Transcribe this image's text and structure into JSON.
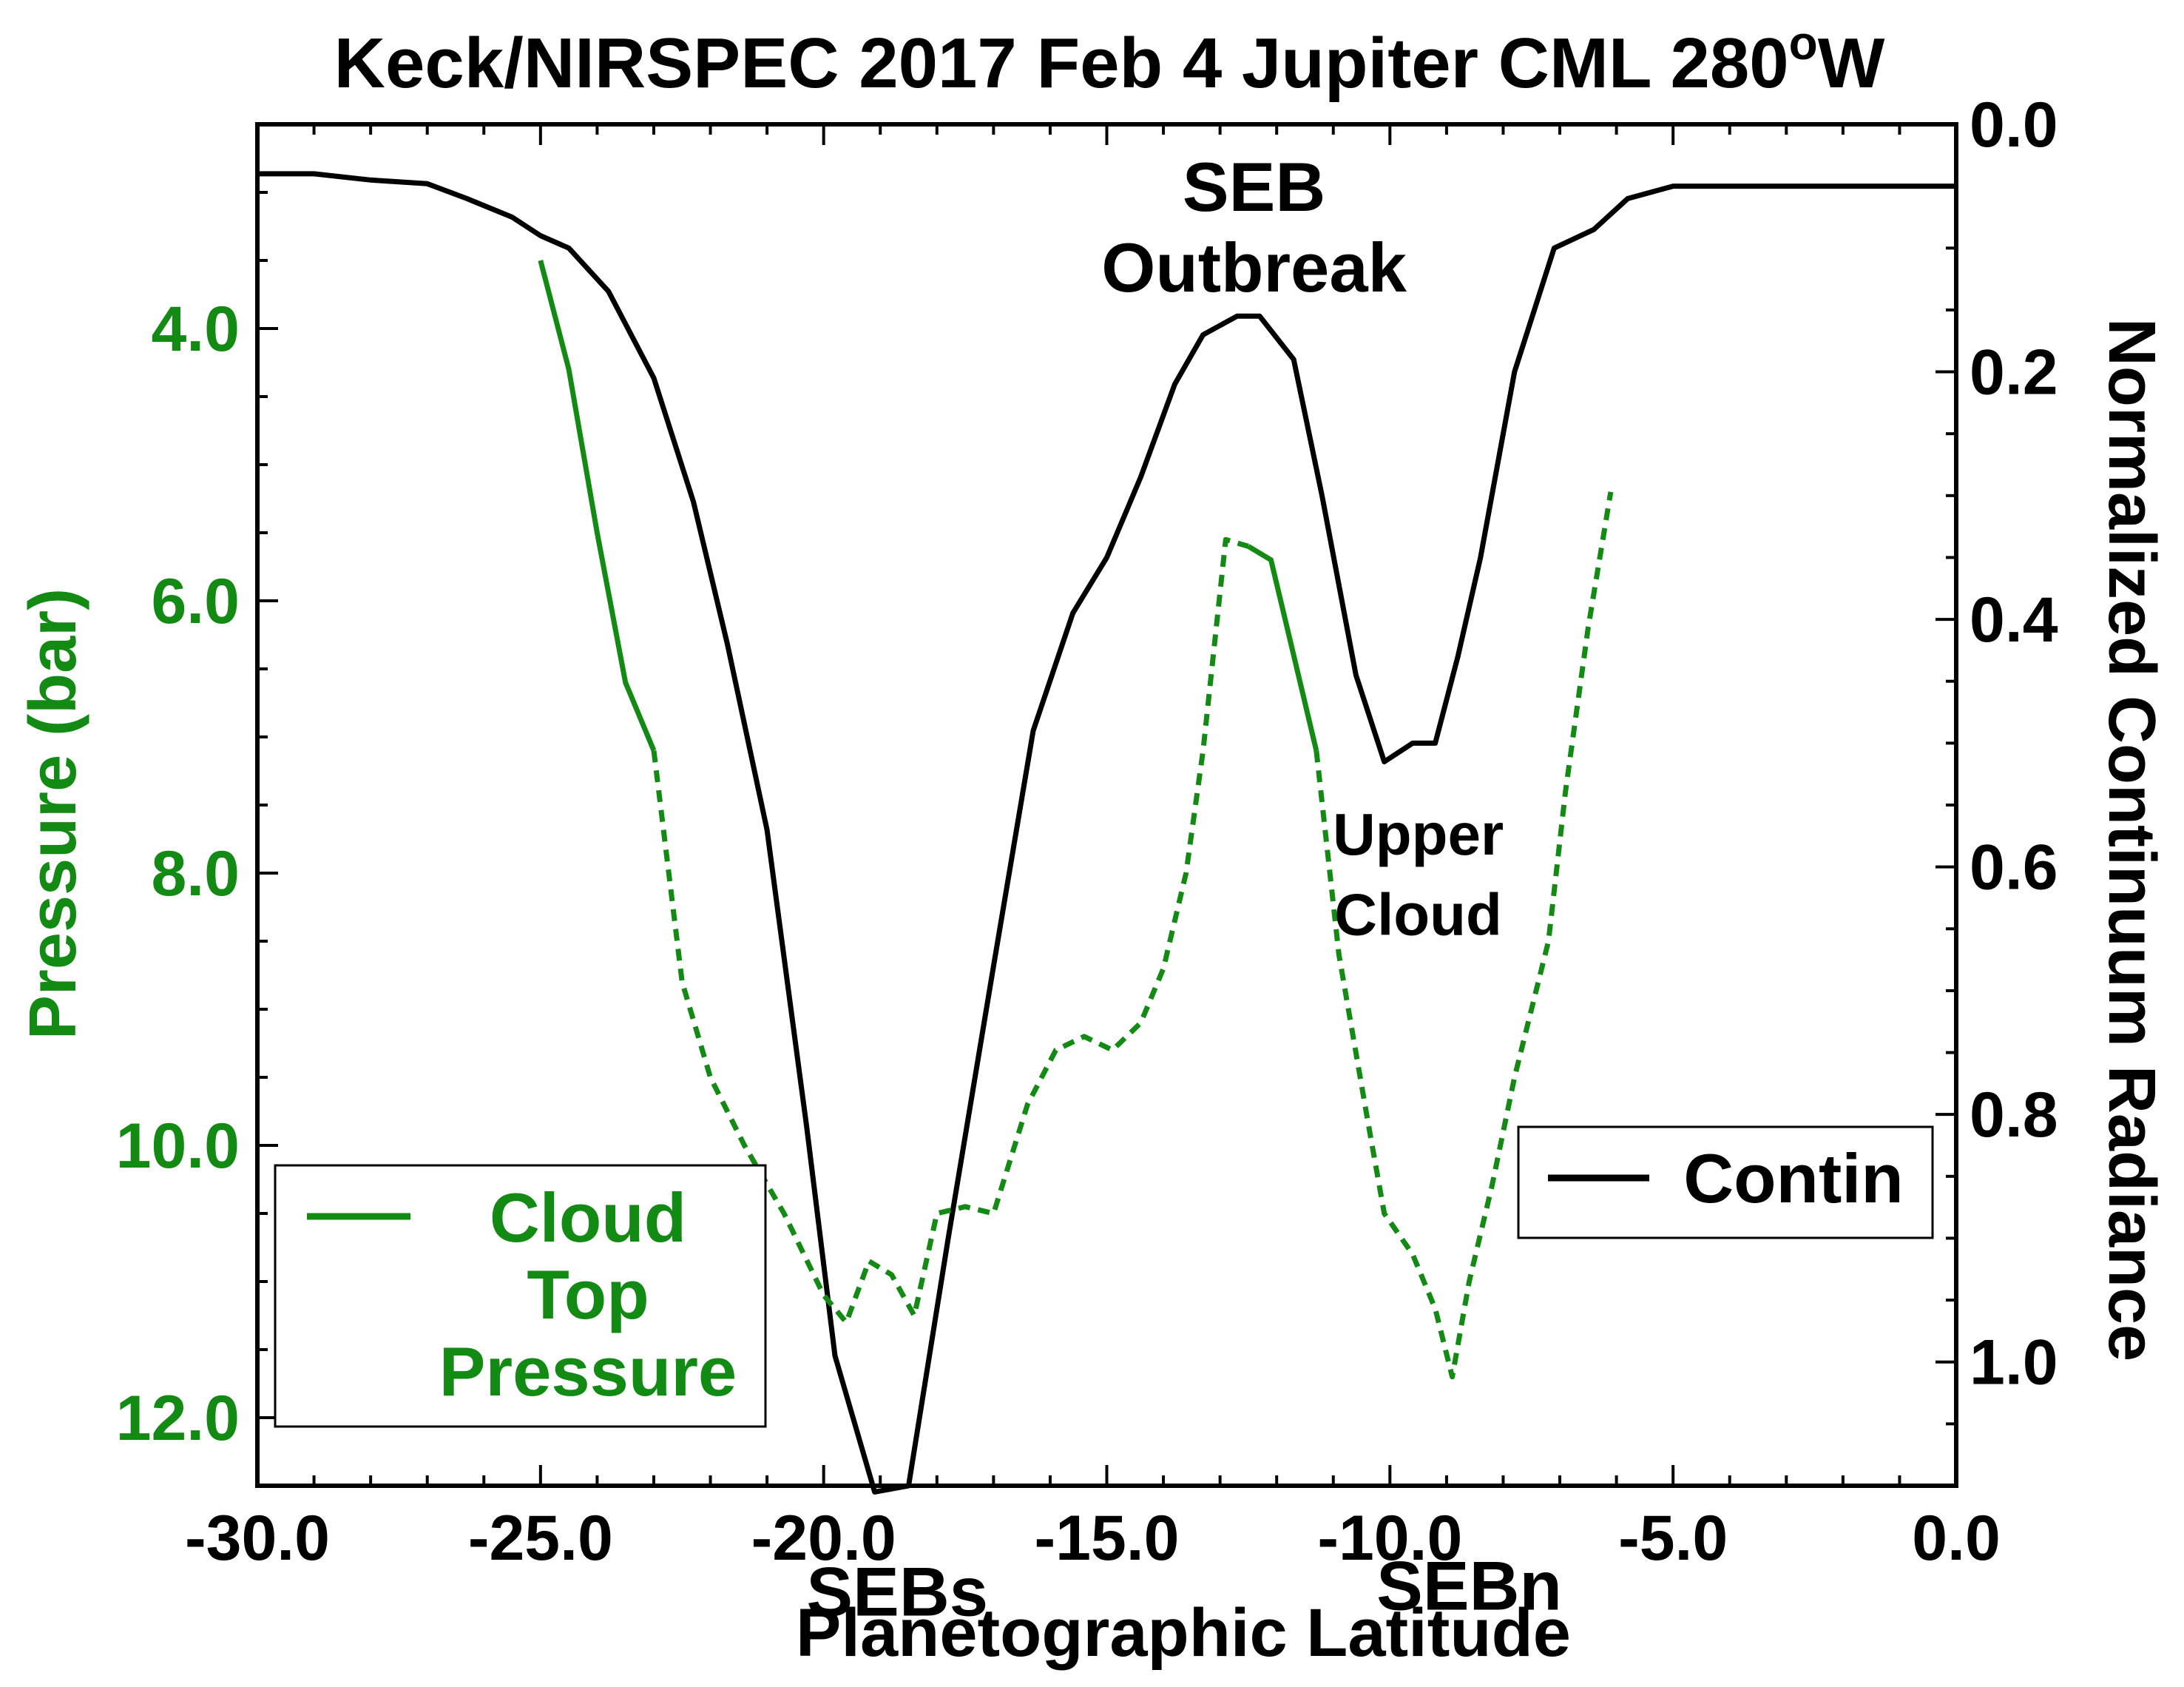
{
  "chart_data": {
    "type": "line",
    "title": "Keck/NIRSPEC 2017 Feb 4 Jupiter CML 280",
    "title_superscript": "o",
    "title_suffix": "W",
    "xlabel": "Planetographic Latitude",
    "ylabel_left": "Pressure (bar)",
    "ylabel_right": "Normalized Continuum Radiance",
    "xlim": [
      -30,
      0
    ],
    "ylim_left": [
      2.5,
      12.5
    ],
    "ylim_left_inverted": true,
    "ylim_right": [
      0.0,
      1.1
    ],
    "ylim_right_inverted": true,
    "x_ticks": [
      {
        "value": -30,
        "label": "-30.0"
      },
      {
        "value": -25,
        "label": "-25.0"
      },
      {
        "value": -20,
        "label": "-20.0"
      },
      {
        "value": -15,
        "label": "-15.0"
      },
      {
        "value": -10,
        "label": "-10.0"
      },
      {
        "value": -5,
        "label": "-5.0"
      },
      {
        "value": 0,
        "label": "0.0"
      }
    ],
    "y_left_ticks": [
      {
        "value": 4,
        "label": "4.0"
      },
      {
        "value": 6,
        "label": "6.0"
      },
      {
        "value": 8,
        "label": "8.0"
      },
      {
        "value": 10,
        "label": "10.0"
      },
      {
        "value": 12,
        "label": "12.0"
      }
    ],
    "y_right_ticks": [
      {
        "value": 0.0,
        "label": "0.0"
      },
      {
        "value": 0.2,
        "label": "0.2"
      },
      {
        "value": 0.4,
        "label": "0.4"
      },
      {
        "value": 0.6,
        "label": "0.6"
      },
      {
        "value": 0.8,
        "label": "0.8"
      },
      {
        "value": 1.0,
        "label": "1.0"
      }
    ],
    "series": [
      {
        "name": "Contin",
        "axis": "right",
        "color": "#000000",
        "style": "solid",
        "x": [
          -30.0,
          -29.0,
          -28.0,
          -27.0,
          -26.3,
          -25.5,
          -25.0,
          -24.5,
          -23.8,
          -23.0,
          -22.3,
          -21.7,
          -21.0,
          -20.3,
          -19.8,
          -19.1,
          -18.5,
          -17.8,
          -17.0,
          -16.3,
          -15.6,
          -15.0,
          -14.4,
          -13.8,
          -13.3,
          -12.7,
          -12.3,
          -11.7,
          -11.2,
          -10.6,
          -10.1,
          -9.6,
          -9.2,
          -8.8,
          -8.4,
          -7.8,
          -7.1,
          -6.4,
          -5.8,
          -5.0,
          -4.0,
          -3.0,
          -2.0,
          -1.0,
          0.0
        ],
        "values": [
          0.04,
          0.04,
          0.045,
          0.048,
          0.06,
          0.075,
          0.09,
          0.1,
          0.135,
          0.205,
          0.305,
          0.42,
          0.57,
          0.81,
          0.995,
          1.105,
          1.1,
          0.9,
          0.68,
          0.49,
          0.395,
          0.35,
          0.285,
          0.21,
          0.17,
          0.155,
          0.155,
          0.19,
          0.3,
          0.445,
          0.515,
          0.5,
          0.5,
          0.43,
          0.35,
          0.2,
          0.1,
          0.085,
          0.06,
          0.05,
          0.05,
          0.05,
          0.05,
          0.05,
          0.05
        ]
      },
      {
        "name": "Cloud Top Pressure",
        "axis": "left",
        "color": "#138a13",
        "style": "solid",
        "x": [
          -25.0,
          -24.5,
          -24.0,
          -23.5,
          -23.0
        ],
        "values": [
          3.5,
          4.3,
          5.5,
          6.6,
          7.1
        ]
      },
      {
        "name": "Cloud Top Pressure",
        "axis": "left",
        "color": "#138a13",
        "style": "dashed",
        "x": [
          -23.0,
          -22.5,
          -22.0,
          -21.4,
          -20.7,
          -20.0,
          -19.6,
          -19.2,
          -18.8,
          -18.4,
          -18.0,
          -17.5,
          -17.0,
          -16.4,
          -15.9,
          -15.4,
          -14.9,
          -14.4,
          -14.0,
          -13.6,
          -13.3,
          -12.9,
          -12.5
        ],
        "values": [
          7.1,
          8.8,
          9.5,
          10.0,
          10.5,
          11.1,
          11.3,
          10.85,
          10.95,
          11.25,
          10.5,
          10.45,
          10.5,
          9.7,
          9.3,
          9.2,
          9.3,
          9.1,
          8.7,
          8.0,
          7.1,
          5.55,
          5.6
        ]
      },
      {
        "name": "Cloud Top Pressure",
        "axis": "left",
        "color": "#138a13",
        "style": "solid",
        "x": [
          -12.5,
          -12.1,
          -11.7,
          -11.3
        ],
        "values": [
          5.6,
          5.7,
          6.4,
          7.1
        ]
      },
      {
        "name": "Cloud Top Pressure",
        "axis": "left",
        "color": "#138a13",
        "style": "dashed",
        "x": [
          -11.3,
          -10.9,
          -10.4,
          -10.1,
          -9.6,
          -9.2,
          -8.9,
          -8.6,
          -8.2,
          -7.8,
          -7.2,
          -6.9,
          -6.5,
          -6.1
        ],
        "values": [
          7.1,
          8.6,
          9.8,
          10.5,
          10.8,
          11.2,
          11.7,
          11.0,
          10.3,
          9.5,
          8.5,
          7.4,
          6.2,
          5.2
        ]
      }
    ],
    "legend": [
      {
        "label": "Cloud Top Pressure",
        "lines": [
          "Cloud",
          "Top",
          "Pressure"
        ],
        "color": "#138a13",
        "position": "bottom-left"
      },
      {
        "label": "Contin",
        "color": "#000000",
        "position": "bottom-right"
      }
    ],
    "annotations": [
      {
        "text": "SEB",
        "x": -12.4,
        "y_right": 0.07
      },
      {
        "text": "Outbreak",
        "x": -12.4,
        "y_right": 0.135
      },
      {
        "text": "Upper",
        "x": -9.5,
        "y_right": 0.59
      },
      {
        "text": "Cloud",
        "x": -9.5,
        "y_right": 0.655
      },
      {
        "text": "SEBs",
        "x": -18.7,
        "y_right": 1.205
      },
      {
        "text": "SEBn",
        "x": -8.6,
        "y_right": 1.2
      }
    ],
    "colors": {
      "axis": "#000000",
      "left_axis_text": "#138a13",
      "contin": "#000000",
      "cloud": "#138a13"
    }
  }
}
